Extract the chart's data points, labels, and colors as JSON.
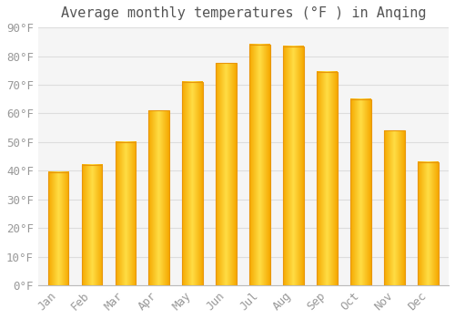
{
  "title": "Average monthly temperatures (°F ) in Anqing",
  "months": [
    "Jan",
    "Feb",
    "Mar",
    "Apr",
    "May",
    "Jun",
    "Jul",
    "Aug",
    "Sep",
    "Oct",
    "Nov",
    "Dec"
  ],
  "values": [
    39.5,
    42,
    50,
    61,
    71,
    77.5,
    84,
    83.5,
    74.5,
    65,
    54,
    43
  ],
  "bar_color_center": "#FFD966",
  "bar_color_edge": "#F5A800",
  "background_color": "#FFFFFF",
  "plot_bg_color": "#F5F5F5",
  "grid_color": "#DDDDDD",
  "ylim": [
    0,
    90
  ],
  "yticks": [
    0,
    10,
    20,
    30,
    40,
    50,
    60,
    70,
    80,
    90
  ],
  "title_fontsize": 11,
  "tick_fontsize": 9,
  "tick_color": "#999999",
  "figsize": [
    5.0,
    3.5
  ],
  "dpi": 100
}
